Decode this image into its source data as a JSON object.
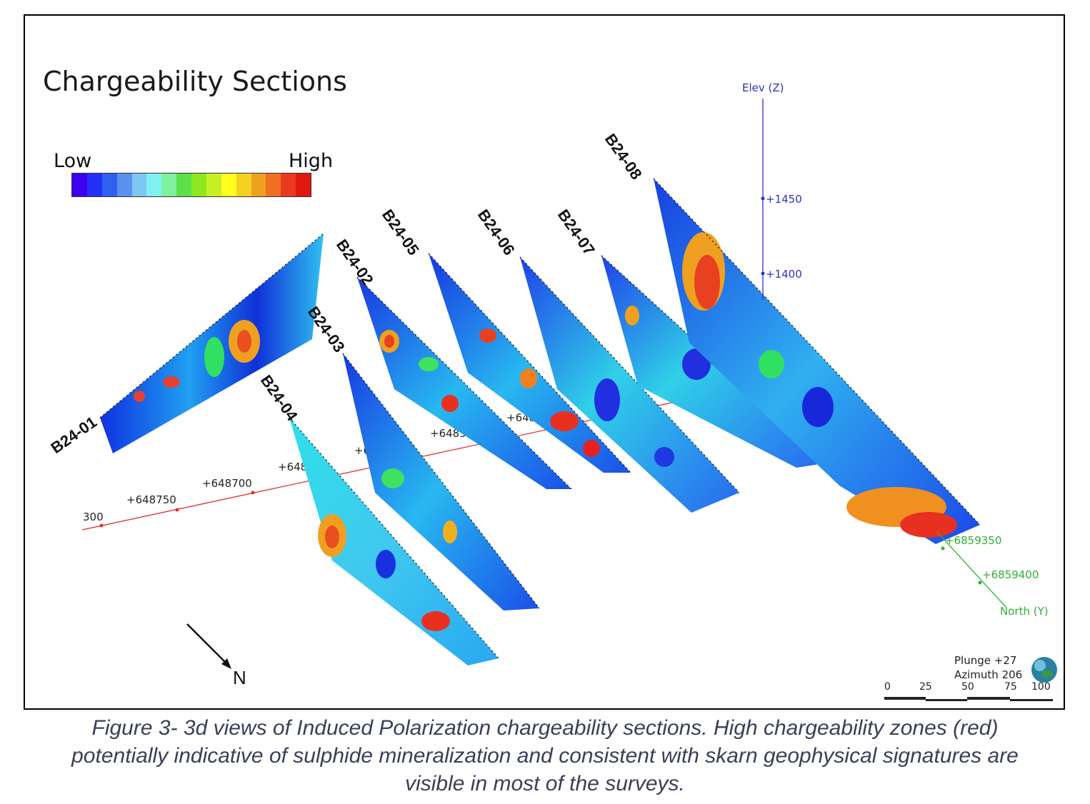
{
  "title": "Chargeability Sections",
  "legend": {
    "low_label": "Low",
    "high_label": "High",
    "colors": [
      "#3f00f0",
      "#2530f5",
      "#3060f0",
      "#5a90ee",
      "#7fc6f4",
      "#7ff2f0",
      "#7ff0a0",
      "#5ee04a",
      "#8de820",
      "#c8f028",
      "#ffff20",
      "#f4d020",
      "#f0a020",
      "#ee7020",
      "#e83a20",
      "#e01810"
    ]
  },
  "sections": [
    {
      "label": "B24-01"
    },
    {
      "label": "B24-02"
    },
    {
      "label": "B24-03"
    },
    {
      "label": "B24-04"
    },
    {
      "label": "B24-05"
    },
    {
      "label": "B24-06"
    },
    {
      "label": "B24-07"
    },
    {
      "label": "B24-08"
    }
  ],
  "axes": {
    "elev": {
      "title": "Elev (Z)",
      "ticks": [
        "+1450",
        "+1400"
      ]
    },
    "east": {
      "ticks": [
        "300",
        "+648750",
        "+648700",
        "+648",
        "+6",
        "+648550",
        "+6485"
      ]
    },
    "north": {
      "title": "North (Y)",
      "ticks": [
        "+6859350",
        "+6859400"
      ]
    },
    "colors": {
      "elev": "#3030c8",
      "east": "#e03030",
      "north": "#30b030"
    }
  },
  "north_arrow": {
    "label": "N"
  },
  "view": {
    "plunge": "Plunge +27",
    "azimuth": "Azimuth 206"
  },
  "scale_bar": {
    "ticks": [
      "0",
      "25",
      "50",
      "75",
      "100"
    ]
  },
  "caption": "Figure 3- 3d views of Induced Polarization chargeability sections. High chargeability zones (red) potentially indicative of sulphide mineralization and consistent with skarn geophysical signatures are visible in most of the surveys."
}
